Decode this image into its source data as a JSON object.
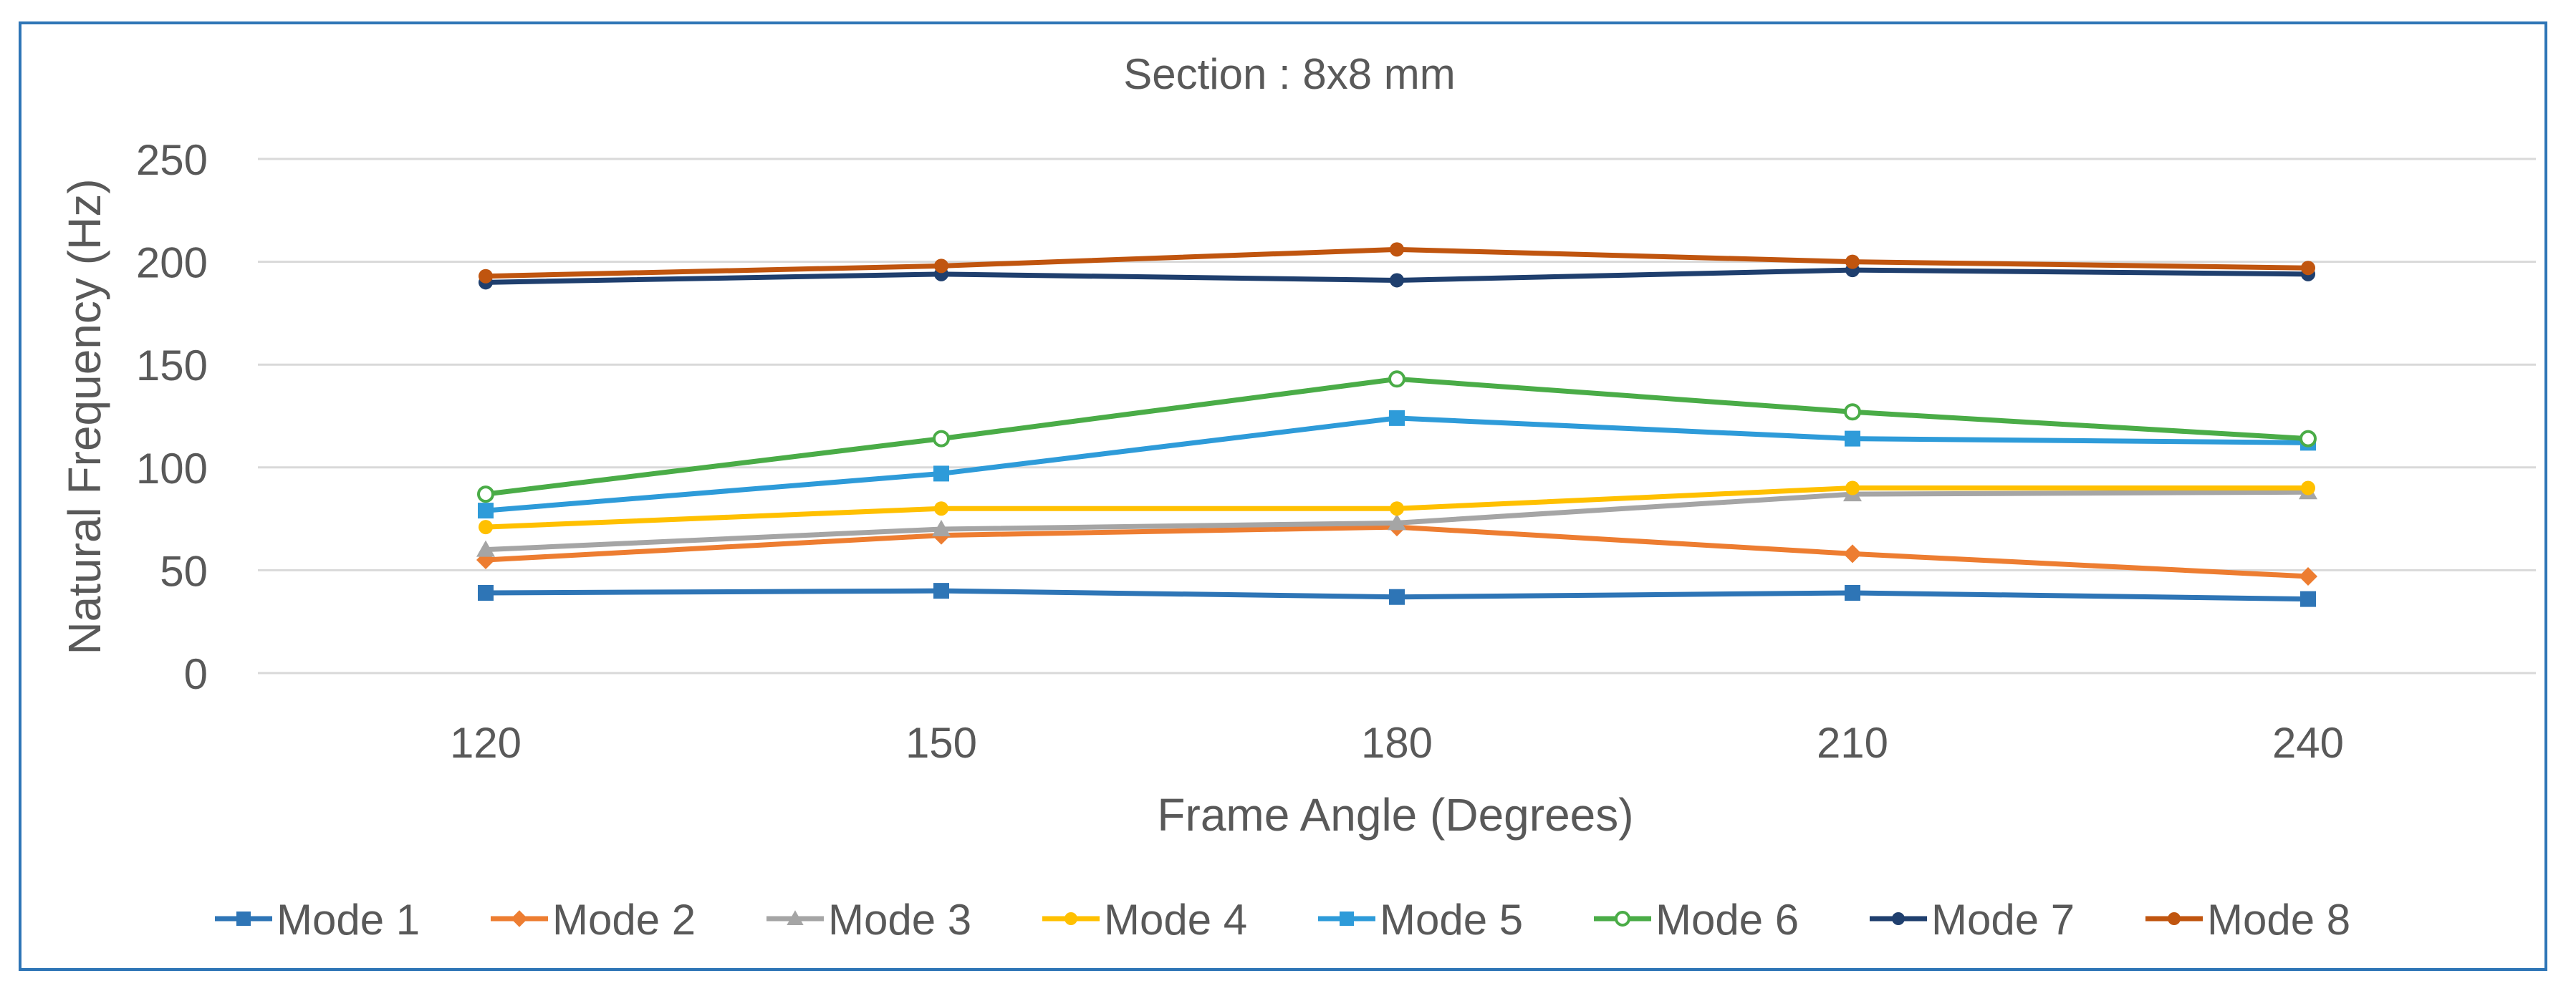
{
  "chart_data": {
    "type": "line",
    "title": "Section : 8x8 mm",
    "xlabel": "Frame Angle (Degrees)",
    "ylabel": "Natural Frequency (Hz)",
    "categories": [
      "120",
      "150",
      "180",
      "210",
      "240"
    ],
    "ylim": [
      0,
      250
    ],
    "yticks": [
      "0",
      "50",
      "100",
      "150",
      "200",
      "250"
    ],
    "grid": "horizontal",
    "legend_position": "bottom",
    "series": [
      {
        "name": "Mode 1",
        "color": "#2e75b6",
        "marker": "square",
        "values": [
          39,
          40,
          37,
          39,
          36
        ]
      },
      {
        "name": "Mode 2",
        "color": "#ed7d31",
        "marker": "diamond",
        "values": [
          55,
          67,
          71,
          58,
          47
        ]
      },
      {
        "name": "Mode 3",
        "color": "#a5a5a5",
        "marker": "triangle",
        "values": [
          60,
          70,
          73,
          87,
          88
        ]
      },
      {
        "name": "Mode 4",
        "color": "#ffc000",
        "marker": "circle",
        "values": [
          71,
          80,
          80,
          90,
          90
        ]
      },
      {
        "name": "Mode 5",
        "color": "#2e9bd9",
        "marker": "square",
        "values": [
          79,
          97,
          124,
          114,
          112
        ]
      },
      {
        "name": "Mode 6",
        "color": "#4aac47",
        "marker": "open-circle",
        "values": [
          87,
          114,
          143,
          127,
          114
        ]
      },
      {
        "name": "Mode 7",
        "color": "#1f3f6e",
        "marker": "circle",
        "values": [
          190,
          194,
          191,
          196,
          194
        ]
      },
      {
        "name": "Mode 8",
        "color": "#c0550f",
        "marker": "circle",
        "values": [
          193,
          198,
          206,
          200,
          197
        ]
      }
    ]
  }
}
